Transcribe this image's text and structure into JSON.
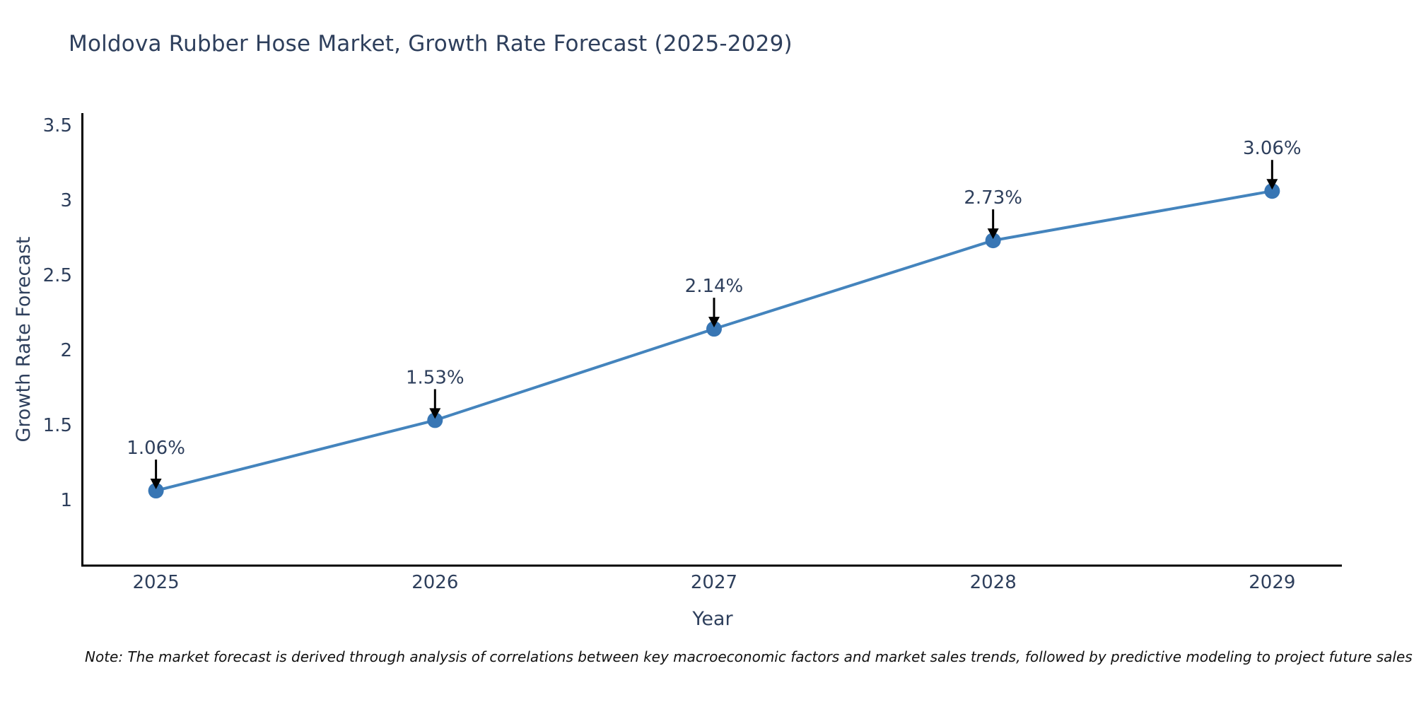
{
  "chart_data": {
    "type": "line",
    "title": "Moldova Rubber Hose Market, Growth Rate Forecast (2025-2029)",
    "xlabel": "Year",
    "ylabel": "Growth Rate Forecast",
    "x": [
      2025,
      2026,
      2027,
      2028,
      2029
    ],
    "values": [
      1.06,
      1.53,
      2.14,
      2.73,
      3.06
    ],
    "point_labels": [
      "1.06%",
      "1.53%",
      "2.14%",
      "2.73%",
      "3.06%"
    ],
    "x_tick_labels": [
      "2025",
      "2026",
      "2027",
      "2028",
      "2029"
    ],
    "y_ticks": [
      1,
      1.5,
      2,
      2.5,
      3,
      3.5
    ],
    "y_tick_labels": [
      "1",
      "1.5",
      "2",
      "2.5",
      "3",
      "3.5"
    ],
    "xlim": [
      2024.74,
      2029.25
    ],
    "ylim": [
      0.56,
      3.58
    ],
    "grid": false,
    "legend": "none",
    "colors": {
      "line": "#4484bd",
      "marker": "#3876b4",
      "axis": "#000000",
      "chart_text": "#2e3f5c",
      "annotation_text": "#2e3f5c",
      "annotation_arrow": "#000000",
      "background": "#ffffff"
    }
  },
  "footnote": {
    "text": "Note: The market forecast is derived through analysis of correlations between key macroeconomic factors and market sales trends, followed by predictive modeling to project future sales"
  }
}
